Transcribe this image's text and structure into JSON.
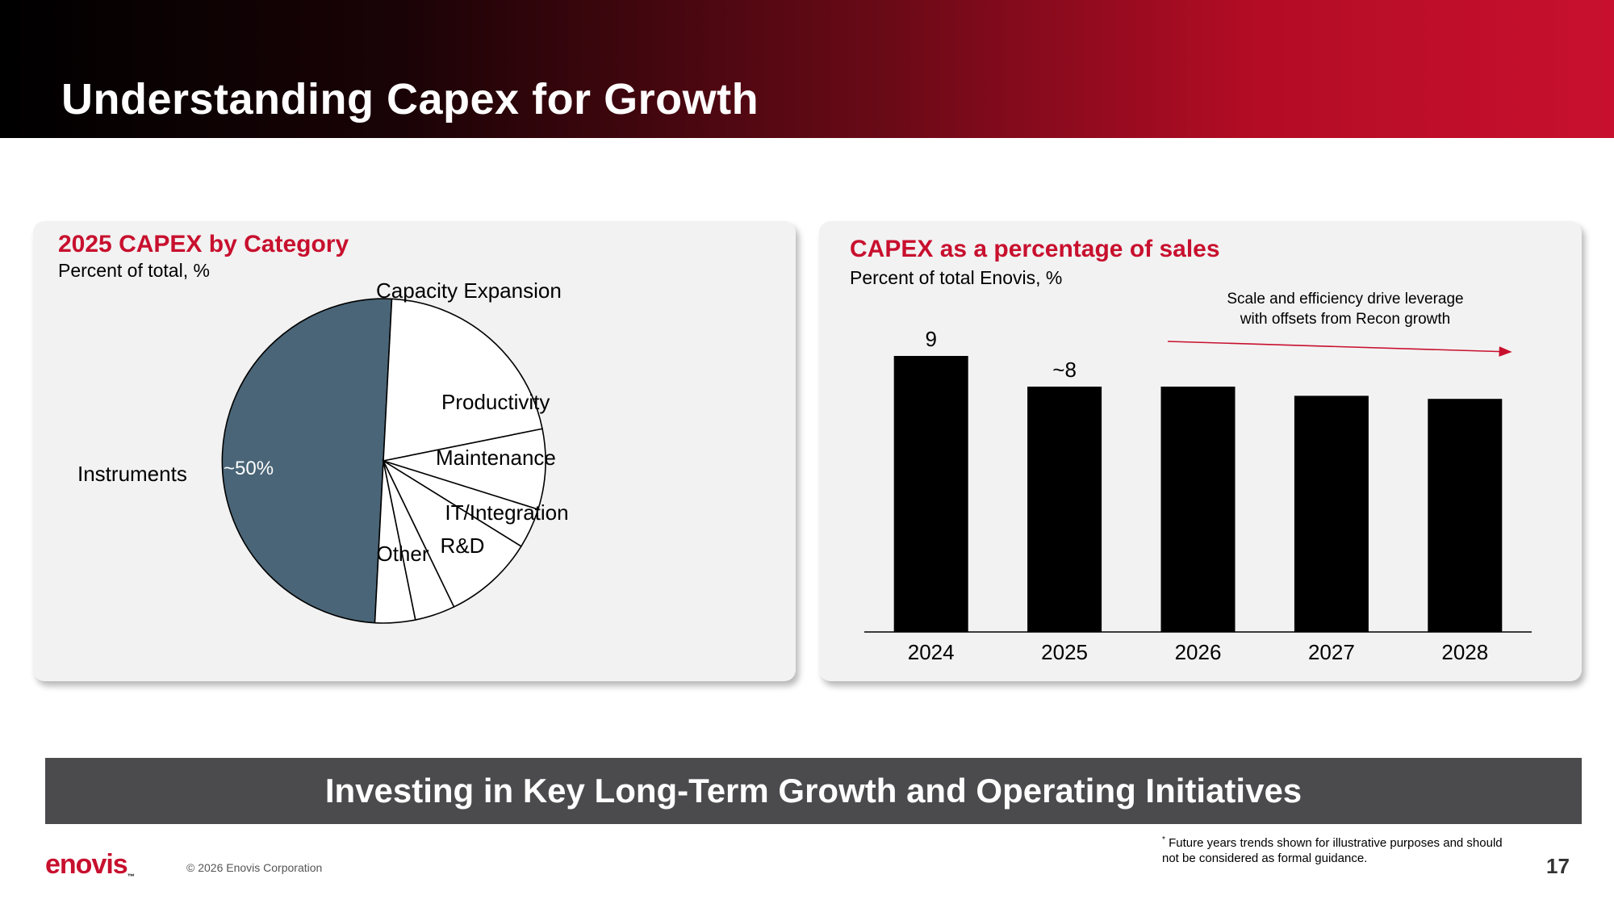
{
  "slide": {
    "title": "Understanding Capex for Growth",
    "banner": "Investing in Key Long-Term Growth and Operating Initiatives",
    "footnote_mark": "*",
    "footnote": "Future years trends shown for illustrative purposes and should not be considered as formal guidance.",
    "copyright": "© 2026 Enovis Corporation",
    "page_number": "17",
    "logo_text": "enovis",
    "colors": {
      "accent": "#c8102e",
      "pie_highlight": "#4a6577",
      "bar": "#000000",
      "banner": "#4b4b4d",
      "panel": "#f2f2f2"
    }
  },
  "chart_data": [
    {
      "type": "pie",
      "title": "2025 CAPEX by Category",
      "subtitle": "Percent of total, %",
      "slices": [
        {
          "label": "Instruments",
          "value": 50,
          "data_label": "~50%",
          "highlight": true
        },
        {
          "label": "Capacity Expansion",
          "value": 21
        },
        {
          "label": "Productivity",
          "value": 8
        },
        {
          "label": "Maintenance",
          "value": 4
        },
        {
          "label": "IT/Integration",
          "value": 9
        },
        {
          "label": "R&D",
          "value": 4
        },
        {
          "label": "Other",
          "value": 4
        }
      ]
    },
    {
      "type": "bar",
      "title": "CAPEX as a percentage of sales",
      "subtitle": "Percent of total Enovis, %",
      "categories": [
        "2024",
        "2025",
        "2026",
        "2027",
        "2028"
      ],
      "values": [
        9,
        8,
        8,
        7.7,
        7.6
      ],
      "data_labels": [
        "9",
        "~8",
        "",
        "",
        ""
      ],
      "ylim": [
        0,
        10
      ],
      "annotation": "Scale and efficiency drive leverage with offsets from Recon growth"
    }
  ]
}
